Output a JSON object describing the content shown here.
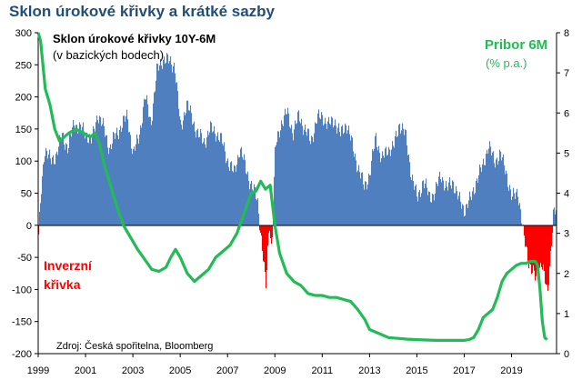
{
  "title": "Sklon úrokové křivky a krátké sazby",
  "chart_data": {
    "type": "bar",
    "xlim": [
      1999,
      2020.9
    ],
    "left_axis": {
      "ticks": [
        300,
        250,
        200,
        150,
        100,
        50,
        0,
        -50,
        -100,
        -150,
        -200
      ],
      "ylim": [
        -200,
        300
      ]
    },
    "right_axis": {
      "ticks": [
        8,
        7,
        6,
        5,
        4,
        3,
        2,
        1,
        0
      ],
      "ylim": [
        0,
        8
      ]
    },
    "x_ticks": [
      "1999",
      "2001",
      "2003",
      "2005",
      "2007",
      "2009",
      "2011",
      "2013",
      "2015",
      "2017",
      "2019"
    ],
    "colors": {
      "positive_bars": "#4f7fbf",
      "negative_bars": "#ff0000",
      "pribor_line": "#22bb55",
      "title": "#1f4e79"
    },
    "series": [
      {
        "name": "Sklon úrokové křivky 10Y-6M",
        "unit": "(v bazických bodech)",
        "axis": "left",
        "x": [
          1999.0,
          1999.1,
          1999.25,
          1999.5,
          1999.75,
          2000.0,
          2000.25,
          2000.5,
          2000.75,
          2001.0,
          2001.25,
          2001.5,
          2001.75,
          2002.0,
          2002.25,
          2002.5,
          2002.75,
          2003.0,
          2003.25,
          2003.5,
          2003.75,
          2004.0,
          2004.25,
          2004.5,
          2004.75,
          2005.0,
          2005.25,
          2005.5,
          2005.75,
          2006.0,
          2006.25,
          2006.5,
          2006.75,
          2007.0,
          2007.25,
          2007.5,
          2007.75,
          2008.0,
          2008.25,
          2008.5,
          2008.6,
          2008.75,
          2008.85,
          2009.0,
          2009.25,
          2009.5,
          2009.75,
          2010.0,
          2010.25,
          2010.5,
          2010.75,
          2011.0,
          2011.25,
          2011.5,
          2011.75,
          2012.0,
          2012.25,
          2012.5,
          2012.75,
          2013.0,
          2013.25,
          2013.5,
          2013.75,
          2014.0,
          2014.25,
          2014.5,
          2014.75,
          2015.0,
          2015.25,
          2015.5,
          2015.75,
          2016.0,
          2016.25,
          2016.5,
          2016.75,
          2017.0,
          2017.25,
          2017.5,
          2017.75,
          2018.0,
          2018.25,
          2018.5,
          2018.75,
          2019.0,
          2019.25,
          2019.5,
          2019.75,
          2020.0,
          2020.25,
          2020.5,
          2020.75
        ],
        "values": [
          -20,
          50,
          120,
          100,
          110,
          140,
          120,
          160,
          150,
          145,
          130,
          175,
          150,
          120,
          140,
          155,
          170,
          110,
          140,
          200,
          160,
          240,
          260,
          255,
          250,
          150,
          190,
          165,
          140,
          130,
          150,
          145,
          130,
          100,
          80,
          120,
          90,
          60,
          40,
          -55,
          -100,
          10,
          -40,
          120,
          160,
          175,
          145,
          170,
          150,
          130,
          165,
          170,
          155,
          165,
          140,
          160,
          125,
          90,
          60,
          80,
          140,
          100,
          120,
          120,
          160,
          140,
          80,
          40,
          70,
          45,
          50,
          80,
          55,
          70,
          40,
          25,
          40,
          70,
          90,
          125,
          100,
          110,
          85,
          40,
          55,
          -20,
          -60,
          -85,
          -55,
          -110,
          20
        ]
      },
      {
        "name": "Pribor 6M",
        "unit": "(% p.a.)",
        "axis": "right",
        "x": [
          1999.0,
          1999.1,
          1999.2,
          1999.3,
          1999.5,
          1999.7,
          1999.9,
          2000.1,
          2000.3,
          2000.6,
          2000.9,
          2001.2,
          2001.4,
          2001.6,
          2001.8,
          2002.0,
          2002.3,
          2002.6,
          2002.9,
          2003.2,
          2003.5,
          2003.8,
          2004.1,
          2004.4,
          2004.6,
          2004.8,
          2005.0,
          2005.3,
          2005.6,
          2005.9,
          2006.2,
          2006.5,
          2006.8,
          2007.1,
          2007.4,
          2007.7,
          2008.0,
          2008.2,
          2008.4,
          2008.6,
          2008.8,
          2009.0,
          2009.2,
          2009.5,
          2009.8,
          2010.1,
          2010.4,
          2010.7,
          2011.0,
          2011.3,
          2011.6,
          2011.9,
          2012.2,
          2012.5,
          2012.8,
          2013.0,
          2013.4,
          2013.8,
          2014.2,
          2014.6,
          2015.0,
          2015.4,
          2015.8,
          2016.2,
          2016.6,
          2017.0,
          2017.2,
          2017.4,
          2017.6,
          2017.8,
          2018.0,
          2018.2,
          2018.4,
          2018.6,
          2018.8,
          2019.0,
          2019.2,
          2019.4,
          2019.6,
          2019.8,
          2020.0,
          2020.1,
          2020.2,
          2020.3,
          2020.4,
          2020.5
        ],
        "values": [
          8.0,
          7.8,
          7.2,
          6.6,
          6.2,
          5.6,
          5.3,
          5.4,
          5.5,
          5.6,
          5.5,
          5.4,
          5.5,
          5.2,
          4.7,
          4.3,
          3.7,
          3.2,
          2.9,
          2.6,
          2.35,
          2.1,
          2.05,
          2.15,
          2.4,
          2.6,
          2.4,
          2.0,
          1.8,
          1.95,
          2.1,
          2.4,
          2.55,
          2.7,
          3.0,
          3.5,
          4.0,
          4.05,
          4.3,
          4.1,
          4.2,
          3.2,
          2.5,
          2.0,
          1.8,
          1.7,
          1.5,
          1.45,
          1.45,
          1.4,
          1.4,
          1.35,
          1.3,
          1.1,
          0.85,
          0.6,
          0.5,
          0.4,
          0.38,
          0.36,
          0.35,
          0.34,
          0.33,
          0.33,
          0.33,
          0.33,
          0.35,
          0.4,
          0.6,
          0.9,
          1.0,
          1.1,
          1.4,
          1.8,
          2.0,
          2.1,
          2.2,
          2.25,
          2.25,
          2.3,
          2.3,
          2.2,
          1.6,
          0.8,
          0.4,
          0.35
        ]
      }
    ],
    "annotations": {
      "curve_label": "Sklon úrokové křivky 10Y-6M",
      "curve_unit": "(v bazických bodech)",
      "pribor_label": "Pribor 6M",
      "pribor_unit": "(% p.a.)",
      "inversion_line1": "Inverzní",
      "inversion_line2": "křivka",
      "source": "Zdroj: Česká spořitelna, Bloomberg"
    }
  }
}
